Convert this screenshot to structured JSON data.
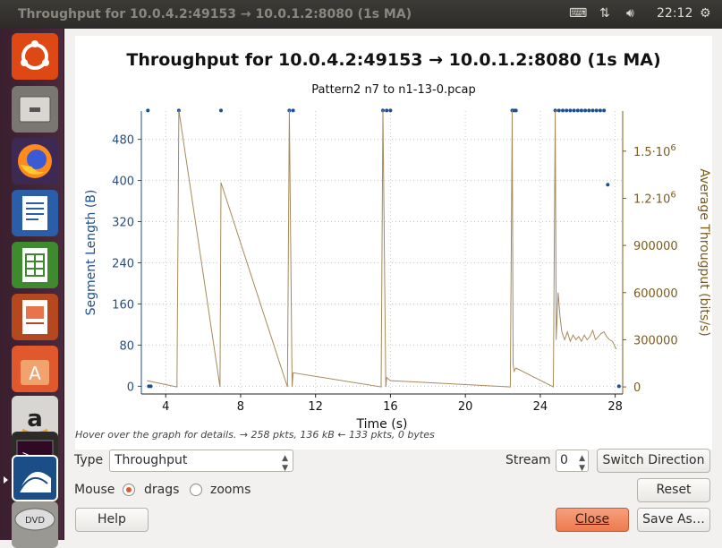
{
  "window": {
    "title": "Throughput for 10.0.4.2:49153 → 10.0.1.2:8080 (1s MA)",
    "clock": "22:12"
  },
  "launcher": {
    "items": [
      "ubuntu-dash",
      "files",
      "firefox",
      "writer",
      "calc",
      "impress",
      "software-center",
      "amazon",
      "terminal",
      "wireshark",
      "dvd"
    ]
  },
  "plot": {
    "chart_data": {
      "type": "scatter+line",
      "title": "Throughput for 10.0.4.2:49153 → 10.0.1.2:8080 (1s MA)",
      "subtitle": "Pattern2 n7 to n1-13-0.pcap",
      "xlabel": "Time (s)",
      "ylabel_left": "Segment Length (B)",
      "ylabel_right": "Average Througput (bits/s)",
      "xlim": [
        2.7,
        28.4
      ],
      "ylim_left": [
        -15,
        535
      ],
      "ylim_right": [
        -45000,
        1755000
      ],
      "x_ticks": [
        4,
        8,
        12,
        16,
        20,
        24,
        28
      ],
      "y_left_ticks": [
        0,
        80,
        160,
        240,
        320,
        400,
        480
      ],
      "y_right_ticks": [
        {
          "value": 0,
          "label": "0"
        },
        {
          "value": 300000,
          "label": "300000"
        },
        {
          "value": 600000,
          "label": "600000"
        },
        {
          "value": 900000,
          "label": "900000"
        },
        {
          "value": 1200000,
          "label": "1.2·10"
        },
        {
          "value": 1500000,
          "label": "1.5·10"
        }
      ],
      "y_right_exponent": "6",
      "grid": true,
      "series": [
        {
          "name": "Segment Length",
          "kind": "points",
          "color": "#1f4e8c",
          "points": [
            [
              3.05,
              536
            ],
            [
              3.1,
              0
            ],
            [
              3.2,
              0
            ],
            [
              4.7,
              536
            ],
            [
              6.95,
              536
            ],
            [
              10.6,
              536
            ],
            [
              10.8,
              536
            ],
            [
              15.6,
              536
            ],
            [
              15.8,
              536
            ],
            [
              16.0,
              536
            ],
            [
              22.5,
              536
            ],
            [
              22.6,
              536
            ],
            [
              22.7,
              536
            ],
            [
              24.8,
              536
            ],
            [
              25.0,
              536
            ],
            [
              25.2,
              536
            ],
            [
              25.4,
              536
            ],
            [
              25.6,
              536
            ],
            [
              25.8,
              536
            ],
            [
              26.0,
              536
            ],
            [
              26.2,
              536
            ],
            [
              26.4,
              536
            ],
            [
              26.6,
              536
            ],
            [
              26.8,
              536
            ],
            [
              27.0,
              536
            ],
            [
              27.2,
              536
            ],
            [
              27.4,
              536
            ],
            [
              27.6,
              392
            ],
            [
              28.2,
              0
            ]
          ]
        },
        {
          "name": "Average Throughput",
          "kind": "line",
          "color": "#a58a5c",
          "points": [
            [
              3.0,
              40000
            ],
            [
              4.6,
              0
            ],
            [
              4.7,
              1760000
            ],
            [
              6.9,
              0
            ],
            [
              6.95,
              1300000
            ],
            [
              10.5,
              0
            ],
            [
              10.6,
              1760000
            ],
            [
              10.75,
              0
            ],
            [
              10.8,
              90000
            ],
            [
              15.5,
              0
            ],
            [
              15.6,
              1760000
            ],
            [
              15.75,
              0
            ],
            [
              15.8,
              60000
            ],
            [
              16.0,
              40000
            ],
            [
              22.4,
              0
            ],
            [
              22.5,
              1760000
            ],
            [
              22.55,
              150000
            ],
            [
              22.6,
              100000
            ],
            [
              22.7,
              120000
            ],
            [
              24.7,
              0
            ],
            [
              24.8,
              1760000
            ],
            [
              24.85,
              300000
            ],
            [
              24.95,
              600000
            ],
            [
              25.05,
              450000
            ],
            [
              25.15,
              350000
            ],
            [
              25.3,
              300000
            ],
            [
              25.45,
              350000
            ],
            [
              25.6,
              290000
            ],
            [
              25.75,
              330000
            ],
            [
              25.9,
              300000
            ],
            [
              26.05,
              320000
            ],
            [
              26.2,
              290000
            ],
            [
              26.35,
              330000
            ],
            [
              26.5,
              300000
            ],
            [
              26.65,
              320000
            ],
            [
              26.8,
              360000
            ],
            [
              26.95,
              300000
            ],
            [
              27.1,
              320000
            ],
            [
              27.25,
              340000
            ],
            [
              27.4,
              350000
            ],
            [
              27.55,
              320000
            ],
            [
              27.7,
              300000
            ],
            [
              27.85,
              290000
            ],
            [
              28.05,
              240000
            ]
          ]
        }
      ]
    }
  },
  "hint": "Hover over the graph for details. → 258 pkts, 136 kB ← 133 pkts, 0 bytes",
  "controls": {
    "type_label": "Type",
    "type_value": "Throughput",
    "stream_label": "Stream",
    "stream_value": "0",
    "switch_direction": "Switch Direction",
    "mouse_label": "Mouse",
    "drags": "drags",
    "zooms": "zooms",
    "mouse_mode": "drags",
    "reset": "Reset",
    "help": "Help",
    "close": "Close",
    "save_as": "Save As…"
  },
  "colors": {
    "accent": "#e0582b",
    "left_axis": "#1f4e8c",
    "right_axis": "#7a5c1e"
  }
}
